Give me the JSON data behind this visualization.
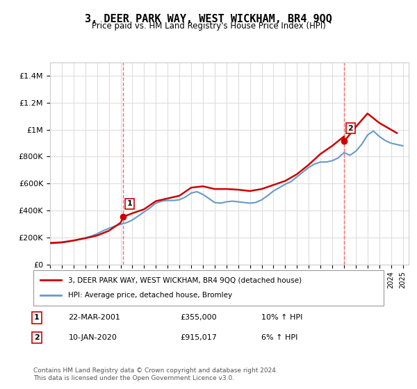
{
  "title": "3, DEER PARK WAY, WEST WICKHAM, BR4 9QQ",
  "subtitle": "Price paid vs. HM Land Registry's House Price Index (HPI)",
  "legend_label_red": "3, DEER PARK WAY, WEST WICKHAM, BR4 9QQ (detached house)",
  "legend_label_blue": "HPI: Average price, detached house, Bromley",
  "annotation1_label": "1",
  "annotation1_date": "22-MAR-2001",
  "annotation1_price": "£355,000",
  "annotation1_hpi": "10% ↑ HPI",
  "annotation2_label": "2",
  "annotation2_date": "10-JAN-2020",
  "annotation2_price": "£915,017",
  "annotation2_hpi": "6% ↑ HPI",
  "footer": "Contains HM Land Registry data © Crown copyright and database right 2024.\nThis data is licensed under the Open Government Licence v3.0.",
  "ylim": [
    0,
    1500000
  ],
  "xlim_start": 1995.0,
  "xlim_end": 2025.5,
  "red_color": "#cc0000",
  "blue_color": "#6699cc",
  "dashed_color": "#ff6666",
  "background_color": "#ffffff",
  "grid_color": "#dddddd",
  "hpi_years": [
    1995,
    1995.5,
    1996,
    1996.5,
    1997,
    1997.5,
    1998,
    1998.5,
    1999,
    1999.5,
    2000,
    2000.5,
    2001,
    2001.5,
    2002,
    2002.5,
    2003,
    2003.5,
    2004,
    2004.5,
    2005,
    2005.5,
    2006,
    2006.5,
    2007,
    2007.5,
    2008,
    2008.5,
    2009,
    2009.5,
    2010,
    2010.5,
    2011,
    2011.5,
    2012,
    2012.5,
    2013,
    2013.5,
    2014,
    2014.5,
    2015,
    2015.5,
    2016,
    2016.5,
    2017,
    2017.5,
    2018,
    2018.5,
    2019,
    2019.5,
    2020,
    2020.5,
    2021,
    2021.5,
    2022,
    2022.5,
    2023,
    2023.5,
    2024,
    2024.5,
    2025
  ],
  "hpi_values": [
    155000,
    158000,
    162000,
    168000,
    177000,
    188000,
    198000,
    210000,
    228000,
    250000,
    268000,
    285000,
    298000,
    310000,
    330000,
    360000,
    390000,
    420000,
    455000,
    470000,
    475000,
    475000,
    480000,
    500000,
    530000,
    540000,
    520000,
    490000,
    460000,
    455000,
    465000,
    470000,
    465000,
    460000,
    455000,
    460000,
    480000,
    510000,
    545000,
    570000,
    595000,
    615000,
    650000,
    685000,
    720000,
    745000,
    760000,
    760000,
    770000,
    790000,
    830000,
    810000,
    840000,
    890000,
    960000,
    990000,
    950000,
    920000,
    900000,
    890000,
    880000
  ],
  "red_years": [
    1995,
    1996,
    1997,
    1998,
    1999,
    2000,
    2001,
    2001.25,
    2002,
    2003,
    2004,
    2005,
    2006,
    2007,
    2008,
    2009,
    2010,
    2011,
    2012,
    2013,
    2014,
    2015,
    2016,
    2017,
    2018,
    2019,
    2020,
    2020.03,
    2021,
    2022,
    2023,
    2024,
    2024.5
  ],
  "red_values": [
    160000,
    165000,
    178000,
    195000,
    215000,
    250000,
    310000,
    355000,
    380000,
    410000,
    470000,
    490000,
    510000,
    570000,
    580000,
    560000,
    560000,
    555000,
    545000,
    560000,
    590000,
    620000,
    670000,
    740000,
    820000,
    880000,
    950000,
    915017,
    1020000,
    1120000,
    1050000,
    1000000,
    975000
  ],
  "sale1_x": 2001.23,
  "sale1_y": 355000,
  "sale2_x": 2020.03,
  "sale2_y": 915017,
  "dashed1_x": 2001.23,
  "dashed2_x": 2020.03
}
